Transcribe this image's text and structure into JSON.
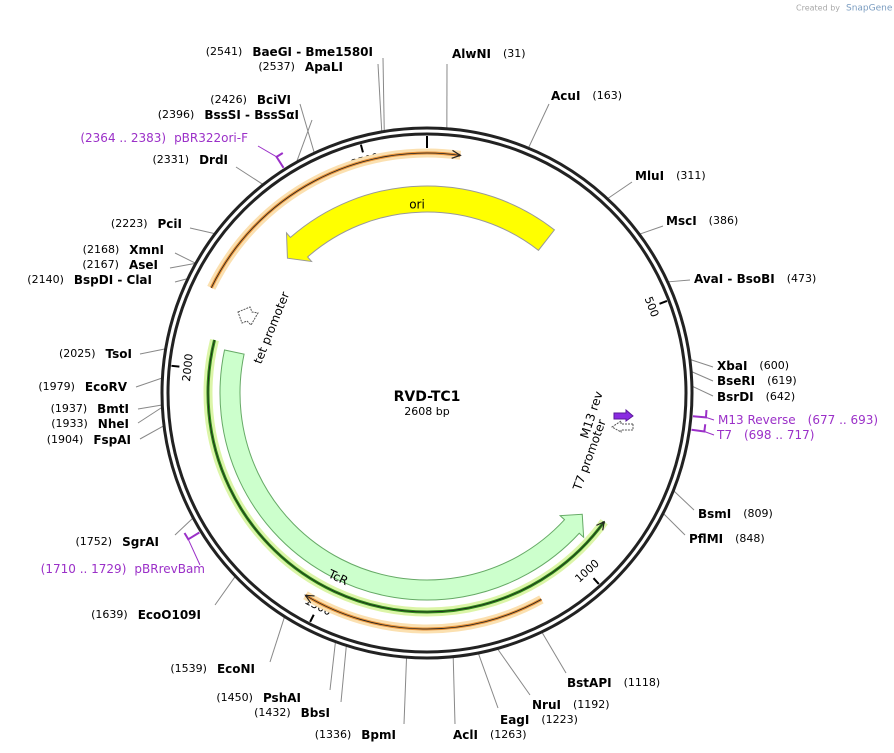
{
  "logo": {
    "created_by": "Created by",
    "brand": "SnapGene"
  },
  "plasmid": {
    "name": "RVD-TC1",
    "length": {
      "value": 2608,
      "label": "2608 bp"
    },
    "ring_ticks": [
      500,
      1000,
      1500,
      2000,
      2500
    ]
  },
  "sites": [
    {
      "name": "AlwNI",
      "position": {
        "value": 31,
        "label": "(31)"
      }
    },
    {
      "name": "AcuI",
      "position": {
        "value": 163,
        "label": "(163)"
      }
    },
    {
      "name": "MluI",
      "position": {
        "value": 311,
        "label": "(311)"
      }
    },
    {
      "name": "MscI",
      "position": {
        "value": 386,
        "label": "(386)"
      }
    },
    {
      "name": "AvaI - BsoBI",
      "position": {
        "value": 473,
        "label": "(473)"
      }
    },
    {
      "name": "XbaI",
      "position": {
        "value": 600,
        "label": "(600)"
      }
    },
    {
      "name": "BseRI",
      "position": {
        "value": 619,
        "label": "(619)"
      }
    },
    {
      "name": "BsrDI",
      "position": {
        "value": 642,
        "label": "(642)"
      }
    },
    {
      "name": "BsmI",
      "position": {
        "value": 809,
        "label": "(809)"
      }
    },
    {
      "name": "PflMI",
      "position": {
        "value": 848,
        "label": "(848)"
      }
    },
    {
      "name": "BstAPI",
      "position": {
        "value": 1118,
        "label": "(1118)"
      }
    },
    {
      "name": "NruI",
      "position": {
        "value": 1192,
        "label": "(1192)"
      }
    },
    {
      "name": "EagI",
      "position": {
        "value": 1223,
        "label": "(1223)"
      }
    },
    {
      "name": "AclI",
      "position": {
        "value": 1263,
        "label": "(1263)"
      }
    },
    {
      "name": "BpmI",
      "position": {
        "value": 1336,
        "label": "(1336)"
      }
    },
    {
      "name": "BbsI",
      "position": {
        "value": 1432,
        "label": "(1432)"
      }
    },
    {
      "name": "PshAI",
      "position": {
        "value": 1450,
        "label": "(1450)"
      }
    },
    {
      "name": "EcoNI",
      "position": {
        "value": 1539,
        "label": "(1539)"
      }
    },
    {
      "name": "EcoO109I",
      "position": {
        "value": 1639,
        "label": "(1639)"
      }
    },
    {
      "name": "SgrAI",
      "position": {
        "value": 1752,
        "label": "(1752)"
      }
    },
    {
      "name": "FspAI",
      "position": {
        "value": 1904,
        "label": "(1904)"
      }
    },
    {
      "name": "NheI",
      "position": {
        "value": 1933,
        "label": "(1933)"
      }
    },
    {
      "name": "BmtI",
      "position": {
        "value": 1937,
        "label": "(1937)"
      }
    },
    {
      "name": "EcoRV",
      "position": {
        "value": 1979,
        "label": "(1979)"
      }
    },
    {
      "name": "TsoI",
      "position": {
        "value": 2025,
        "label": "(2025)"
      }
    },
    {
      "name": "BspDI - ClaI",
      "position": {
        "value": 2140,
        "label": "(2140)"
      }
    },
    {
      "name": "AseI",
      "position": {
        "value": 2167,
        "label": "(2167)"
      }
    },
    {
      "name": "XmnI",
      "position": {
        "value": 2168,
        "label": "(2168)"
      }
    },
    {
      "name": "PciI",
      "position": {
        "value": 2223,
        "label": "(2223)"
      }
    },
    {
      "name": "DrdI",
      "position": {
        "value": 2331,
        "label": "(2331)"
      }
    },
    {
      "name": "BssSI - BssSαI",
      "position": {
        "value": 2396,
        "label": "(2396)"
      }
    },
    {
      "name": "BciVI",
      "position": {
        "value": 2426,
        "label": "(2426)"
      }
    },
    {
      "name": "ApaLI",
      "position": {
        "value": 2537,
        "label": "(2537)"
      }
    },
    {
      "name": "BaeGI - Bme1580I",
      "position": {
        "value": 2541,
        "label": "(2541)"
      }
    }
  ],
  "primers": [
    {
      "name": "pBR322ori-F",
      "range": "(2364 .. 2383)"
    },
    {
      "name": "M13 Reverse",
      "range": "(677 .. 693)"
    },
    {
      "name": "T7",
      "range": "(698 .. 717)"
    },
    {
      "name": "pBRrevBam",
      "range": "(1710 .. 1729)"
    }
  ],
  "features": [
    {
      "label": "ori"
    },
    {
      "label": "TcR"
    },
    {
      "label": "tet promoter"
    },
    {
      "label": "T7 promoter"
    },
    {
      "label": "M13 rev"
    }
  ]
}
